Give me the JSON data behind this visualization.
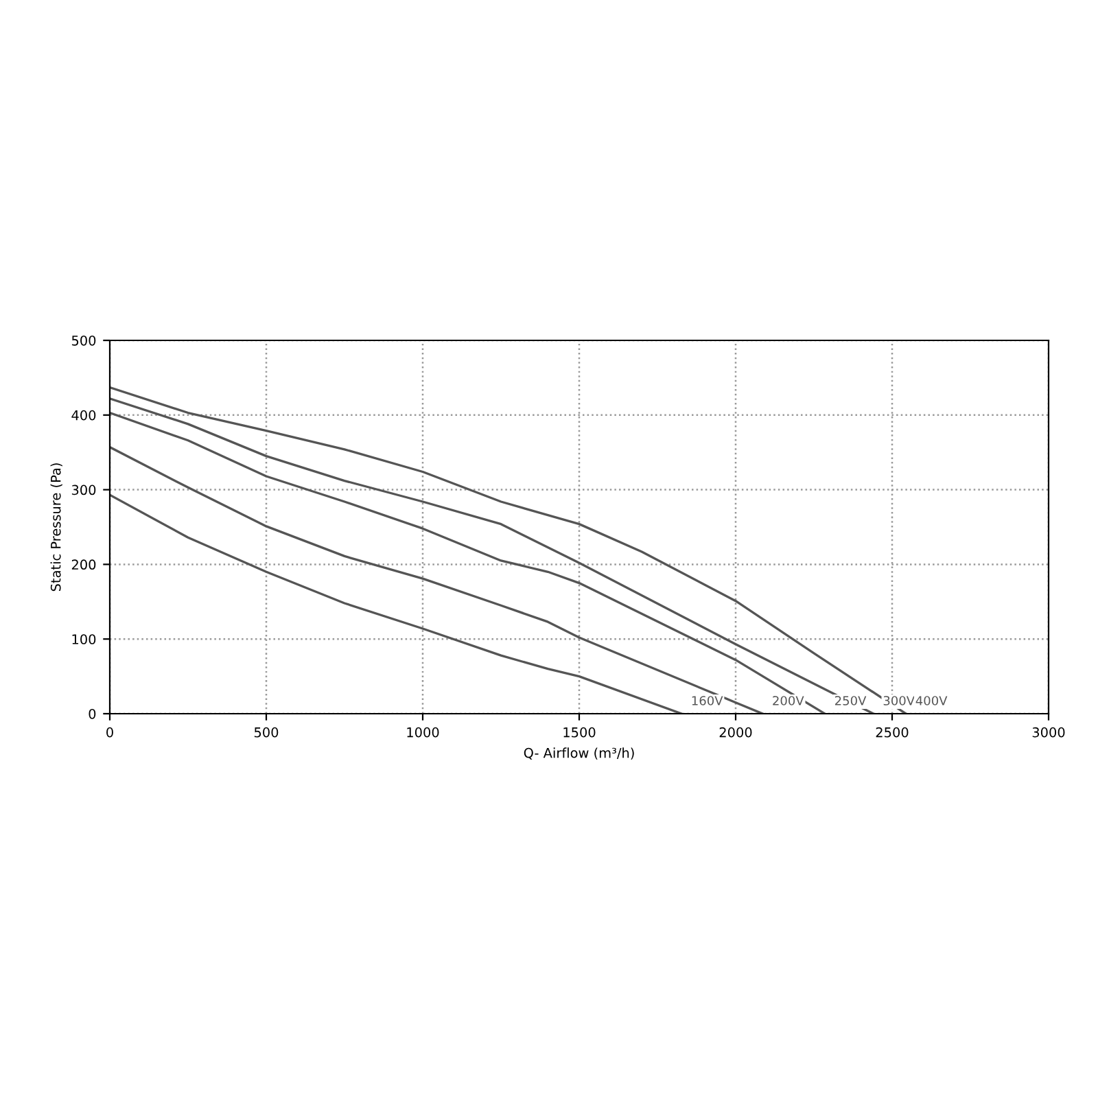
{
  "chart_data": {
    "type": "line",
    "xlabel": "Q- Airflow (m³/h)",
    "ylabel": "Static Pressure (Pa)",
    "xlim": [
      0,
      3000
    ],
    "ylim": [
      0,
      500
    ],
    "xticks": [
      0,
      500,
      1000,
      1500,
      2000,
      2500,
      3000
    ],
    "yticks": [
      0,
      100,
      200,
      300,
      400,
      500
    ],
    "grid": true,
    "marker": "none",
    "line_style": "solid",
    "series": [
      {
        "name": "160V",
        "color": "#555555",
        "x": [
          0,
          250,
          500,
          750,
          1000,
          1250,
          1400,
          1500,
          1827
        ],
        "values": [
          293,
          236,
          190,
          148,
          114,
          78,
          60,
          50,
          0
        ]
      },
      {
        "name": "200V",
        "color": "#555555",
        "x": [
          0,
          250,
          500,
          750,
          1000,
          1250,
          1400,
          1500,
          2000,
          2086
        ],
        "values": [
          357,
          303,
          251,
          211,
          181,
          145,
          123,
          102,
          15,
          0
        ]
      },
      {
        "name": "250V",
        "color": "#555555",
        "x": [
          0,
          250,
          500,
          750,
          1000,
          1250,
          1400,
          1500,
          2000,
          2285
        ],
        "values": [
          403,
          366,
          318,
          284,
          248,
          205,
          190,
          175,
          72,
          0
        ]
      },
      {
        "name": "300V",
        "color": "#555555",
        "x": [
          0,
          250,
          500,
          750,
          1000,
          1250,
          1500,
          2000,
          2440
        ],
        "values": [
          422,
          388,
          345,
          312,
          284,
          254,
          202,
          93,
          0
        ]
      },
      {
        "name": "400V",
        "color": "#555555",
        "x": [
          0,
          250,
          500,
          750,
          1000,
          1250,
          1500,
          1700,
          2000,
          2250,
          2544
        ],
        "values": [
          437,
          403,
          379,
          354,
          324,
          284,
          254,
          217,
          151,
          81,
          0
        ]
      }
    ]
  }
}
